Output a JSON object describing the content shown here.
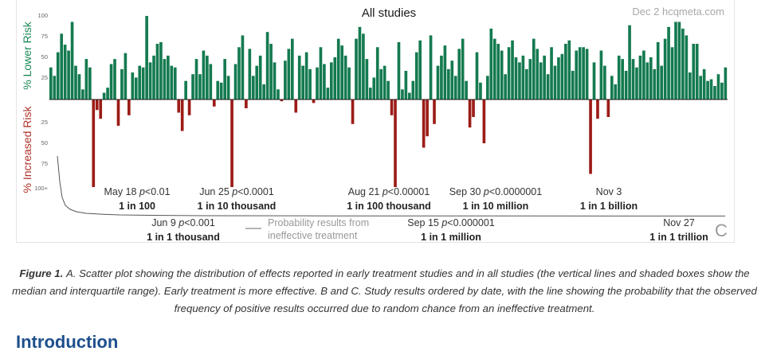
{
  "figure": {
    "title": "All studies",
    "watermark": "Dec 2 hcqmeta.com",
    "panel_letter": "C",
    "legend_text": "Probability results from ineffective treatment",
    "colors": {
      "lower_risk": "#147a4f",
      "increased_risk": "#9c1c17",
      "y_label_green": "#1d8a55",
      "y_label_red": "#b0322a",
      "probability_line": "#555555",
      "baseline": "#1a1a1a"
    }
  },
  "chart_data": {
    "type": "bar",
    "title": "All studies",
    "ylabel_positive": "% Lower Risk",
    "ylabel_negative": "% Increased Risk",
    "y_ticks_top": [
      "100",
      "75",
      "50",
      "25"
    ],
    "y_ticks_bottom": [
      "25",
      "50",
      "75",
      "100+"
    ],
    "ylim": [
      -100,
      100
    ],
    "values": [
      38,
      28,
      56,
      78,
      65,
      58,
      92,
      40,
      30,
      12,
      48,
      38,
      -100,
      -12,
      -22,
      8,
      14,
      42,
      48,
      -30,
      36,
      55,
      -18,
      32,
      26,
      40,
      38,
      99,
      44,
      52,
      66,
      68,
      48,
      52,
      40,
      38,
      -15,
      -36,
      22,
      -18,
      30,
      48,
      30,
      58,
      52,
      42,
      -8,
      22,
      20,
      48,
      28,
      -100,
      42,
      62,
      76,
      -10,
      60,
      28,
      40,
      52,
      18,
      80,
      66,
      44,
      12,
      -2,
      46,
      60,
      72,
      -15,
      52,
      40,
      56,
      36,
      -4,
      38,
      62,
      42,
      14,
      44,
      50,
      72,
      64,
      52,
      38,
      -28,
      72,
      86,
      78,
      48,
      14,
      26,
      62,
      36,
      40,
      22,
      -18,
      -100,
      68,
      12,
      34,
      8,
      22,
      56,
      70,
      -55,
      -42,
      76,
      -28,
      40,
      52,
      64,
      36,
      46,
      28,
      60,
      72,
      22,
      -32,
      -20,
      56,
      20,
      -50,
      28,
      84,
      72,
      66,
      58,
      30,
      62,
      70,
      50,
      44,
      52,
      36,
      48,
      72,
      60,
      44,
      52,
      30,
      62,
      40,
      50,
      54,
      66,
      70,
      34,
      58,
      62,
      62,
      60,
      -85,
      44,
      -22,
      58,
      40,
      -20,
      28,
      18,
      52,
      48,
      34,
      88,
      48,
      38,
      52,
      58,
      44,
      50,
      36,
      68,
      40,
      72,
      86,
      62,
      92,
      92,
      84,
      76,
      32,
      66,
      66,
      28,
      36,
      22,
      24,
      16,
      30,
      20,
      38
    ],
    "milestones_top": [
      {
        "date": "May 18",
        "p": "p<0.01",
        "odds": "1 in 100"
      },
      {
        "date": "Jun 25",
        "p": "p<0.0001",
        "odds": "1 in 10 thousand"
      },
      {
        "date": "Aug 21",
        "p": "p<0.00001",
        "odds": "1 in 100 thousand"
      },
      {
        "date": "Sep 30",
        "p": "p<0.0000001",
        "odds": "1 in 10 million"
      },
      {
        "date": "Nov 3",
        "p": "",
        "odds": "1 in 1 billion"
      }
    ],
    "milestones_bottom": [
      {
        "date": "Jun 9",
        "p": "p<0.001",
        "odds": "1 in 1 thousand"
      },
      {
        "date": "Sep 15",
        "p": "p<0.000001",
        "odds": "1 in 1 million"
      },
      {
        "date": "Nov 27",
        "p": "",
        "odds": "1 in 1 trillion"
      }
    ]
  },
  "caption": {
    "label": "Figure 1.",
    "part_a": "A.",
    "text_a": " Scatter plot showing the distribution of effects reported in early treatment studies and in all studies (the vertical lines and shaded boxes show the median and interquartile range). Early treatment is more effective. ",
    "part_bc": "B and C.",
    "text_bc": " Study results ordered by date, with the line showing the probability that the observed frequency of positive results occurred due to random chance from an ineffective treatment."
  },
  "section": {
    "heading": "Introduction"
  }
}
